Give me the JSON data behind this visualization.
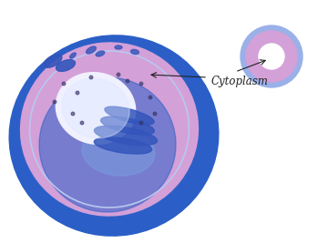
{
  "bg_color": "#ffffff",
  "cell_outer_color": "#2b5fc7",
  "cytoplasm_color": "#d4a0d8",
  "nucleus_color": "#f0f0ff",
  "organelle_blue": "#3355bb",
  "organelle_light_blue": "#7799dd",
  "organelle_mid_blue": "#5577cc",
  "annotation_text": "Cytoplasm",
  "annotation_color": "#222222",
  "small_cell_outer": "#9ab0e8",
  "small_cell_inner": "#d4a0d8",
  "small_cell_hole": "#ffffff",
  "membrane_edge": "#b8c8f0"
}
